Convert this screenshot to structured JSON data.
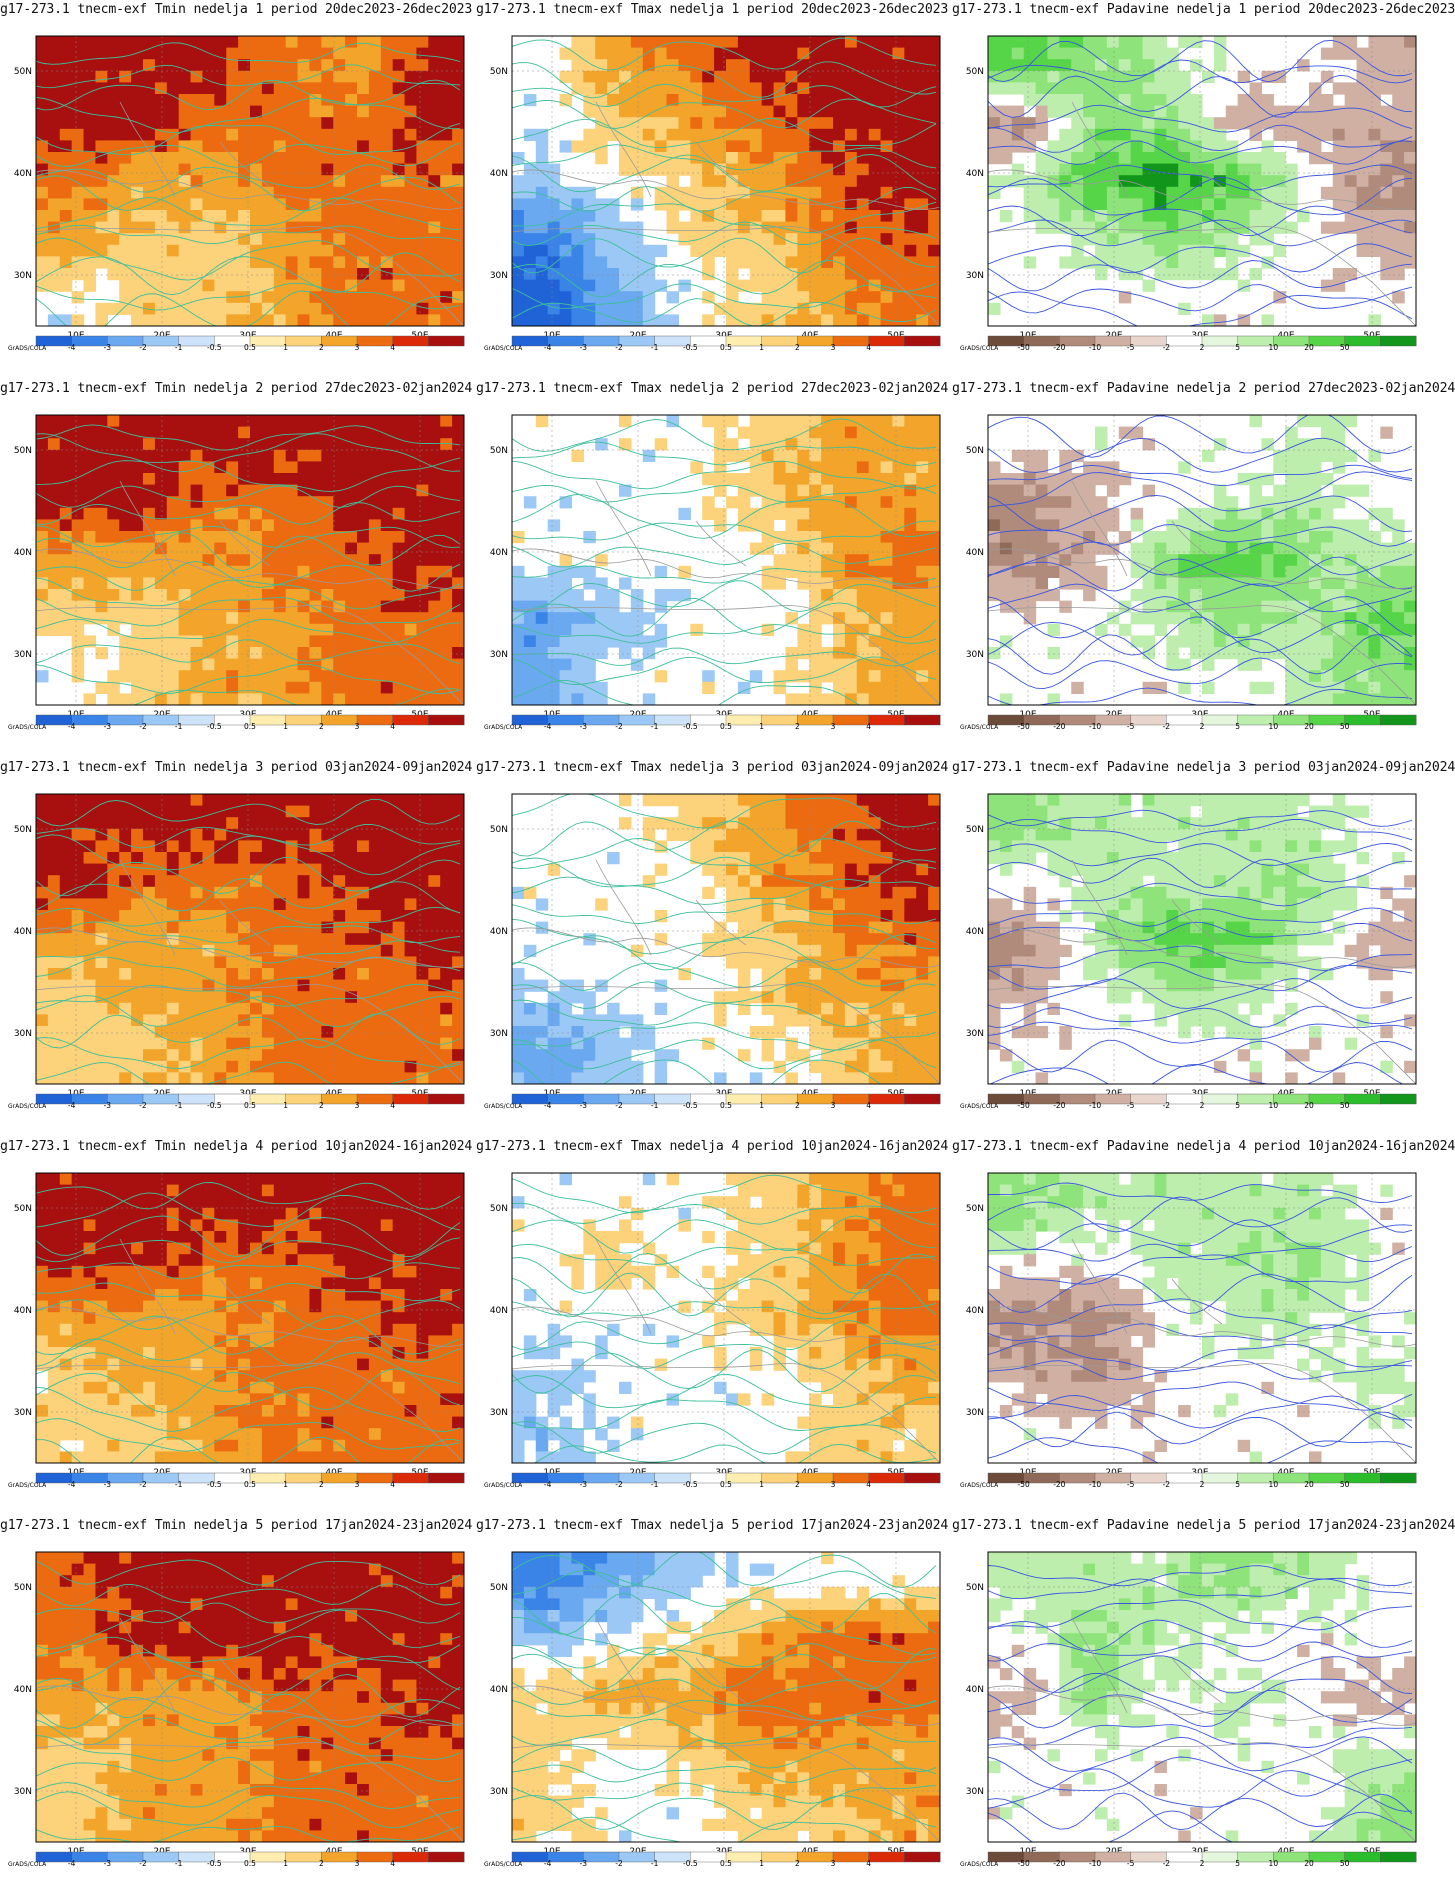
{
  "figure": {
    "credit": "GrADS/COLA",
    "axes": {
      "x_ticks": [
        "10E",
        "20E",
        "30E",
        "40E",
        "50E"
      ],
      "y_ticks": [
        "50N",
        "40N",
        "30N"
      ]
    },
    "colorbars": {
      "temperature": {
        "labels": [
          "-4",
          "-3",
          "-2",
          "-1",
          "-0.5",
          "0.5",
          "1",
          "2",
          "3",
          "4"
        ],
        "colors": [
          "#1f63d6",
          "#3a84e8",
          "#6aa8f0",
          "#9cc8f6",
          "#cde3fa",
          "#ffffff",
          "#ffeeb0",
          "#fcd27a",
          "#f3a52b",
          "#ec6a10",
          "#dc2a08",
          "#a80f0f"
        ]
      },
      "precipitation": {
        "labels": [
          "-50",
          "-20",
          "-10",
          "-5",
          "-2",
          "2",
          "5",
          "10",
          "20",
          "50"
        ],
        "colors": [
          "#6d4b3b",
          "#8f6a58",
          "#b08a7a",
          "#cfb0a3",
          "#e8d6cd",
          "#ffffff",
          "#e4f7dc",
          "#bdeeae",
          "#8ee47a",
          "#56d548",
          "#2cbd2c",
          "#11951a"
        ]
      }
    },
    "contour_colors": {
      "temperature": "#3dbf9a",
      "precipitation": "#3a55e0",
      "borders": "#9a9a9a"
    }
  },
  "panels": [
    {
      "title": "g17-273.1 tnecm-exf Tmin nedelja 1 period 20dec2023-26dec2023",
      "variable": "Tmin",
      "week": 1,
      "cells": [
        [
          4,
          4,
          4,
          3,
          2,
          4
        ],
        [
          4,
          4,
          3,
          3,
          3,
          4
        ],
        [
          3,
          2,
          2,
          3,
          3,
          3
        ],
        [
          2,
          1,
          1,
          2,
          3,
          3
        ],
        [
          0,
          1,
          1,
          2,
          3,
          3
        ]
      ]
    },
    {
      "title": "g17-273.1 tnecm-exf Tmax nedelja 1 period 20dec2023-26dec2023",
      "variable": "Tmax",
      "week": 1,
      "cells": [
        [
          0,
          2,
          3,
          4,
          4,
          4
        ],
        [
          0,
          1,
          2,
          3,
          4,
          4
        ],
        [
          -1,
          0,
          1,
          2,
          3,
          4
        ],
        [
          -3,
          -1,
          1,
          1,
          3,
          3
        ],
        [
          -4,
          -2,
          0,
          1,
          2,
          3
        ]
      ]
    },
    {
      "title": "g17-273.1 tnecm-exf Padavine nedelja 1 period 20dec2023-26dec2023",
      "variable": "Padavine",
      "week": 1,
      "cells": [
        [
          3,
          2,
          1,
          0,
          0,
          -1
        ],
        [
          -2,
          2,
          2,
          -1,
          -1,
          -1
        ],
        [
          1,
          3,
          4,
          3,
          0,
          -2
        ],
        [
          0,
          1,
          2,
          1,
          0,
          -1
        ],
        [
          0,
          0,
          0,
          0,
          0,
          0
        ]
      ]
    },
    {
      "title": "g17-273.1 tnecm-exf Tmin nedelja 2 period 27dec2023-02jan2024",
      "variable": "Tmin",
      "week": 2,
      "cells": [
        [
          4,
          4,
          4,
          4,
          4,
          4
        ],
        [
          4,
          4,
          3,
          3,
          4,
          4
        ],
        [
          2,
          2,
          2,
          3,
          3,
          4
        ],
        [
          1,
          1,
          2,
          2,
          3,
          3
        ],
        [
          0,
          1,
          2,
          2,
          3,
          3
        ]
      ]
    },
    {
      "title": "g17-273.1 tnecm-exf Tmax nedelja 2 period 27dec2023-02jan2024",
      "variable": "Tmax",
      "week": 2,
      "cells": [
        [
          0,
          0,
          0,
          1,
          2,
          2
        ],
        [
          0,
          0,
          0,
          1,
          2,
          2
        ],
        [
          0,
          0,
          0,
          0,
          2,
          3
        ],
        [
          -2,
          -1,
          0,
          0,
          1,
          2
        ],
        [
          -2,
          0,
          0,
          0,
          1,
          2
        ]
      ]
    },
    {
      "title": "g17-273.1 tnecm-exf Padavine nedelja 2 period 27dec2023-02jan2024",
      "variable": "Padavine",
      "week": 2,
      "cells": [
        [
          0,
          0,
          0,
          0,
          1,
          0
        ],
        [
          -2,
          -1,
          0,
          1,
          1,
          0
        ],
        [
          -2,
          -1,
          2,
          3,
          2,
          1
        ],
        [
          0,
          0,
          1,
          2,
          1,
          3
        ],
        [
          0,
          0,
          0,
          0,
          1,
          2
        ]
      ]
    },
    {
      "title": "g17-273.1 tnecm-exf Tmin nedelja 3 period 03jan2024-09jan2024",
      "variable": "Tmin",
      "week": 3,
      "cells": [
        [
          4,
          4,
          4,
          4,
          4,
          4
        ],
        [
          4,
          3,
          3,
          3,
          4,
          4
        ],
        [
          2,
          2,
          2,
          3,
          3,
          4
        ],
        [
          1,
          2,
          2,
          3,
          3,
          3
        ],
        [
          1,
          1,
          2,
          3,
          3,
          3
        ]
      ]
    },
    {
      "title": "g17-273.1 tnecm-exf Tmax nedelja 3 period 03jan2024-09jan2024",
      "variable": "Tmax",
      "week": 3,
      "cells": [
        [
          0,
          0,
          1,
          2,
          3,
          4
        ],
        [
          0,
          0,
          0,
          2,
          3,
          4
        ],
        [
          0,
          0,
          0,
          1,
          2,
          3
        ],
        [
          -1,
          0,
          0,
          1,
          2,
          2
        ],
        [
          -2,
          -1,
          0,
          0,
          1,
          2
        ]
      ]
    },
    {
      "title": "g17-273.1 tnecm-exf Padavine nedelja 3 period 03jan2024-09jan2024",
      "variable": "Padavine",
      "week": 3,
      "cells": [
        [
          2,
          1,
          1,
          1,
          1,
          0
        ],
        [
          0,
          1,
          1,
          1,
          2,
          0
        ],
        [
          -2,
          1,
          3,
          3,
          1,
          -1
        ],
        [
          -1,
          0,
          1,
          1,
          0,
          0
        ],
        [
          0,
          0,
          0,
          0,
          0,
          0
        ]
      ]
    },
    {
      "title": "g17-273.1 tnecm-exf Tmin nedelja 4 period 10jan2024-16jan2024",
      "variable": "Tmin",
      "week": 4,
      "cells": [
        [
          4,
          4,
          4,
          4,
          4,
          4
        ],
        [
          4,
          4,
          3,
          3,
          4,
          4
        ],
        [
          2,
          2,
          2,
          3,
          3,
          4
        ],
        [
          1,
          2,
          2,
          3,
          3,
          3
        ],
        [
          1,
          1,
          2,
          3,
          3,
          3
        ]
      ]
    },
    {
      "title": "g17-273.1 tnecm-exf Tmax nedelja 4 period 10jan2024-16jan2024",
      "variable": "Tmax",
      "week": 4,
      "cells": [
        [
          0,
          0,
          0,
          1,
          2,
          3
        ],
        [
          0,
          1,
          0,
          1,
          2,
          3
        ],
        [
          0,
          0,
          0,
          1,
          2,
          3
        ],
        [
          -1,
          0,
          0,
          0,
          1,
          2
        ],
        [
          -1,
          0,
          0,
          0,
          1,
          1
        ]
      ]
    },
    {
      "title": "g17-273.1 tnecm-exf Padavine nedelja 4 period 10jan2024-16jan2024",
      "variable": "Padavine",
      "week": 4,
      "cells": [
        [
          2,
          1,
          1,
          1,
          1,
          0
        ],
        [
          0,
          0,
          1,
          1,
          2,
          0
        ],
        [
          -2,
          -2,
          0,
          1,
          1,
          0
        ],
        [
          -1,
          -2,
          0,
          0,
          0,
          1
        ],
        [
          0,
          0,
          0,
          0,
          0,
          0
        ]
      ]
    },
    {
      "title": "g17-273.1 tnecm-exf Tmin nedelja 5 period 17jan2024-23jan2024",
      "variable": "Tmin",
      "week": 5,
      "cells": [
        [
          3,
          4,
          4,
          4,
          4,
          4
        ],
        [
          3,
          4,
          4,
          4,
          4,
          4
        ],
        [
          2,
          2,
          2,
          3,
          3,
          4
        ],
        [
          1,
          2,
          2,
          3,
          3,
          3
        ],
        [
          1,
          2,
          2,
          3,
          3,
          3
        ]
      ]
    },
    {
      "title": "g17-273.1 tnecm-exf Tmax nedelja 5 period 17jan2024-23jan2024",
      "variable": "Tmax",
      "week": 5,
      "cells": [
        [
          -3,
          -2,
          -1,
          0,
          0,
          0
        ],
        [
          -1,
          0,
          1,
          2,
          3,
          3
        ],
        [
          1,
          2,
          2,
          3,
          3,
          3
        ],
        [
          1,
          0,
          1,
          2,
          2,
          2
        ],
        [
          1,
          0,
          0,
          1,
          1,
          2
        ]
      ]
    },
    {
      "title": "g17-273.1 tnecm-exf Padavine nedelja 5 period 17jan2024-23jan2024",
      "variable": "Padavine",
      "week": 5,
      "cells": [
        [
          1,
          1,
          1,
          2,
          1,
          0
        ],
        [
          0,
          2,
          1,
          0,
          0,
          0
        ],
        [
          -1,
          2,
          0,
          1,
          0,
          -1
        ],
        [
          0,
          0,
          0,
          0,
          0,
          1
        ],
        [
          0,
          0,
          0,
          0,
          0,
          2
        ]
      ]
    }
  ]
}
